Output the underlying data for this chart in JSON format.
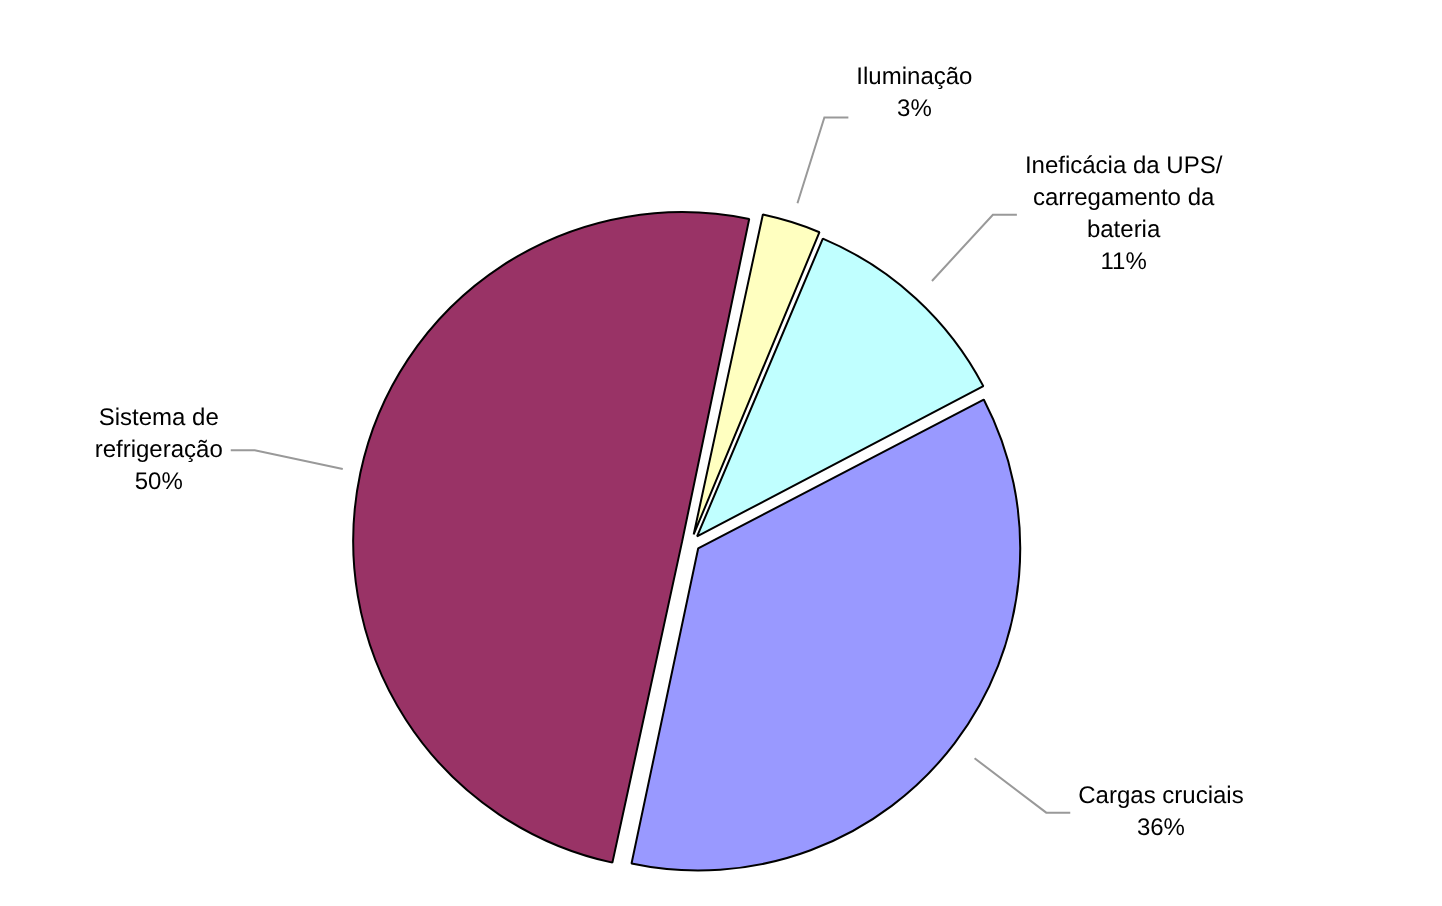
{
  "chart_data": {
    "type": "pie",
    "categories": [
      "Iluminação",
      "Ineficácia da UPS/\ncarregamento da\nbateria",
      "Cargas cruciais",
      "Sistema de\nrefrigeração"
    ],
    "values": [
      3,
      11,
      36,
      50
    ],
    "value_labels": [
      "3%",
      "11%",
      "36%",
      "50%"
    ],
    "colors": [
      "#ffffc0",
      "#c0ffff",
      "#9999ff",
      "#993366"
    ],
    "legend": false
  }
}
